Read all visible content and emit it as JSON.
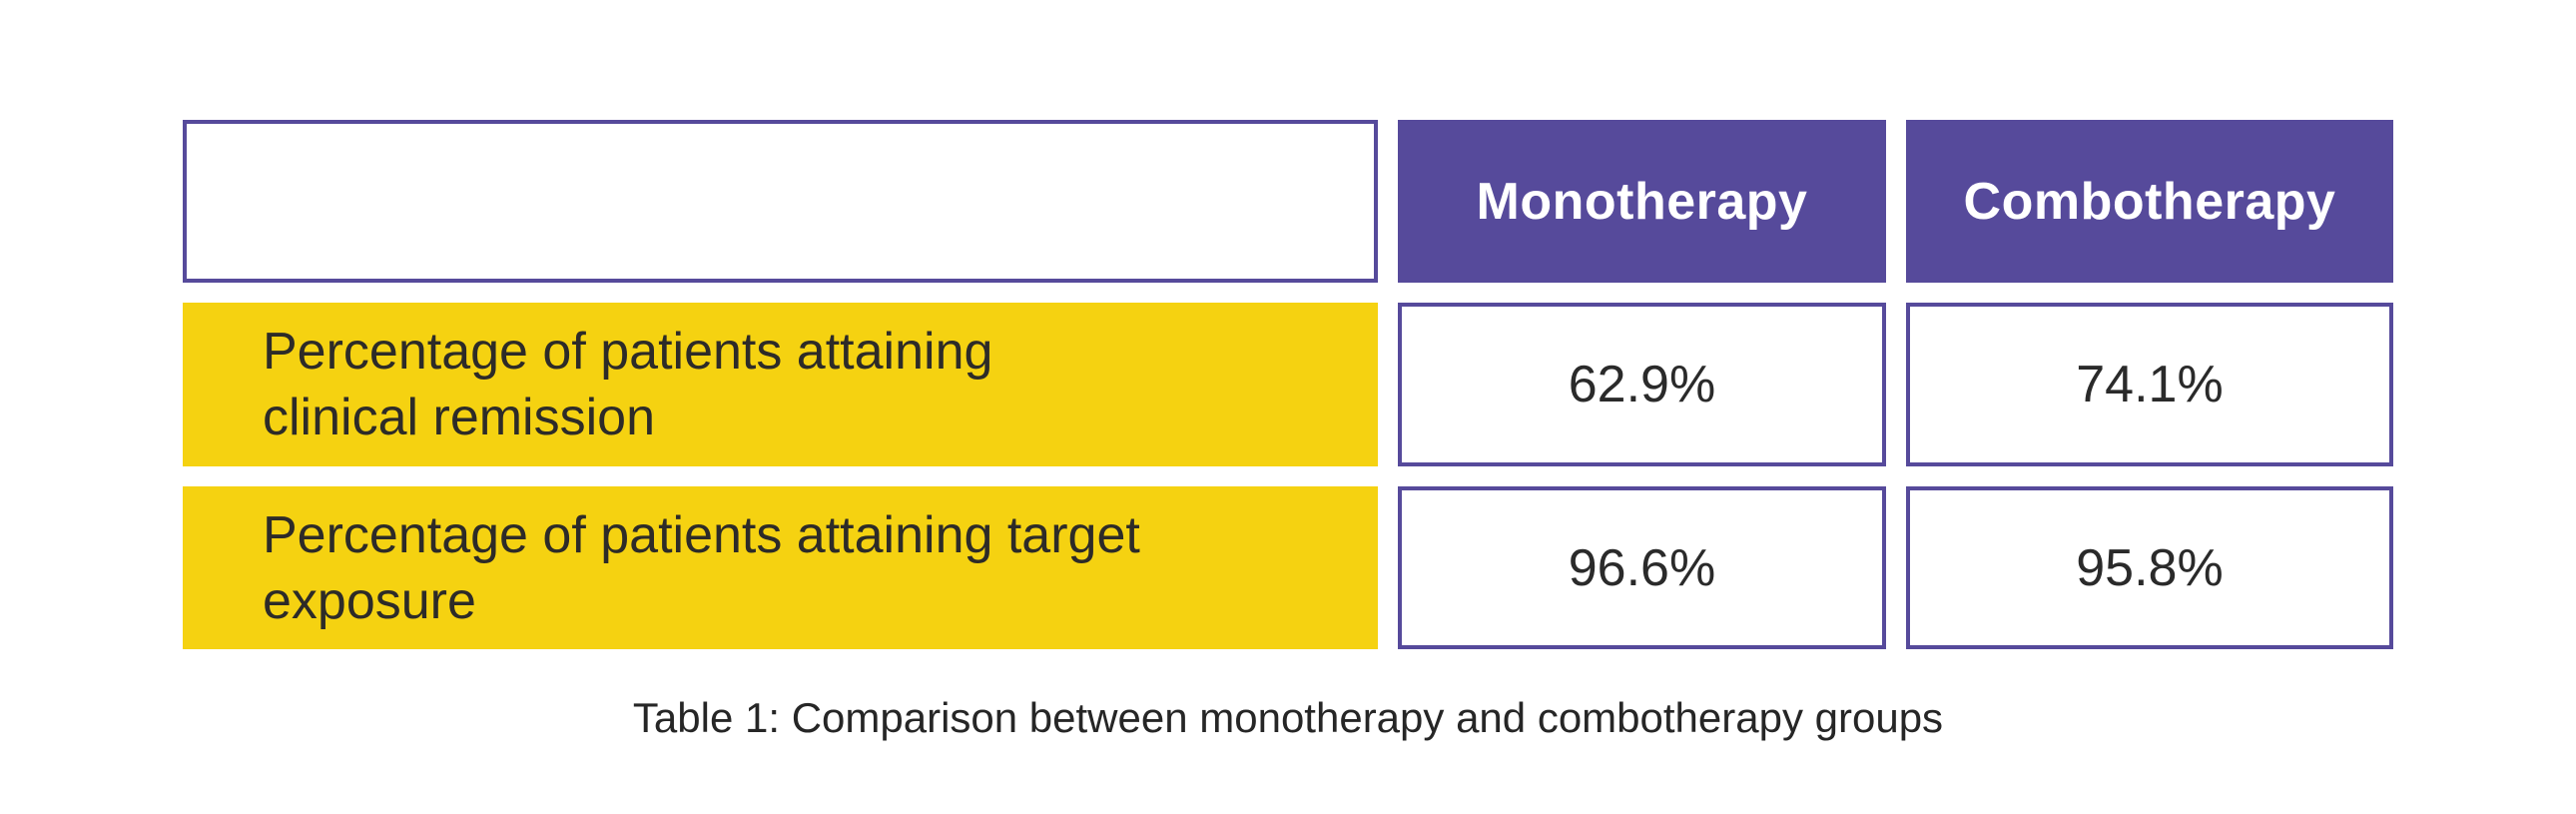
{
  "colors": {
    "header_bg": "#564a9b",
    "header_text": "#ffffff",
    "row_label_bg": "#f5d211",
    "row_label_text": "#2d2b28",
    "value_text": "#2a2a2a",
    "cell_border": "#564a9b",
    "caption_text": "#262626",
    "page_bg": "#ffffff"
  },
  "table": {
    "caption": "Table 1: Comparison between monotherapy and combotherapy groups",
    "column_headers": [
      "Monotherapy",
      "Combotherapy"
    ],
    "rows": [
      {
        "label_lines": [
          "Percentage of patients attaining",
          "clinical remission"
        ],
        "values": [
          "62.9%",
          "74.1%"
        ]
      },
      {
        "label_lines": [
          "Percentage of patients attaining target",
          "exposure"
        ],
        "values": [
          "96.6%",
          "95.8%"
        ]
      }
    ]
  },
  "chart_data": {
    "type": "table",
    "title": "Table 1: Comparison between monotherapy and combotherapy groups",
    "columns": [
      "",
      "Monotherapy",
      "Combotherapy"
    ],
    "rows": [
      [
        "Percentage of patients attaining clinical remission",
        "62.9%",
        "74.1%"
      ],
      [
        "Percentage of patients attaining target exposure",
        "96.6%",
        "95.8%"
      ]
    ],
    "series": [
      {
        "name": "Monotherapy",
        "values": [
          62.9,
          96.6
        ]
      },
      {
        "name": "Combotherapy",
        "values": [
          74.1,
          95.8
        ]
      }
    ],
    "categories": [
      "Percentage of patients attaining clinical remission",
      "Percentage of patients attaining target exposure"
    ],
    "unit": "%"
  }
}
